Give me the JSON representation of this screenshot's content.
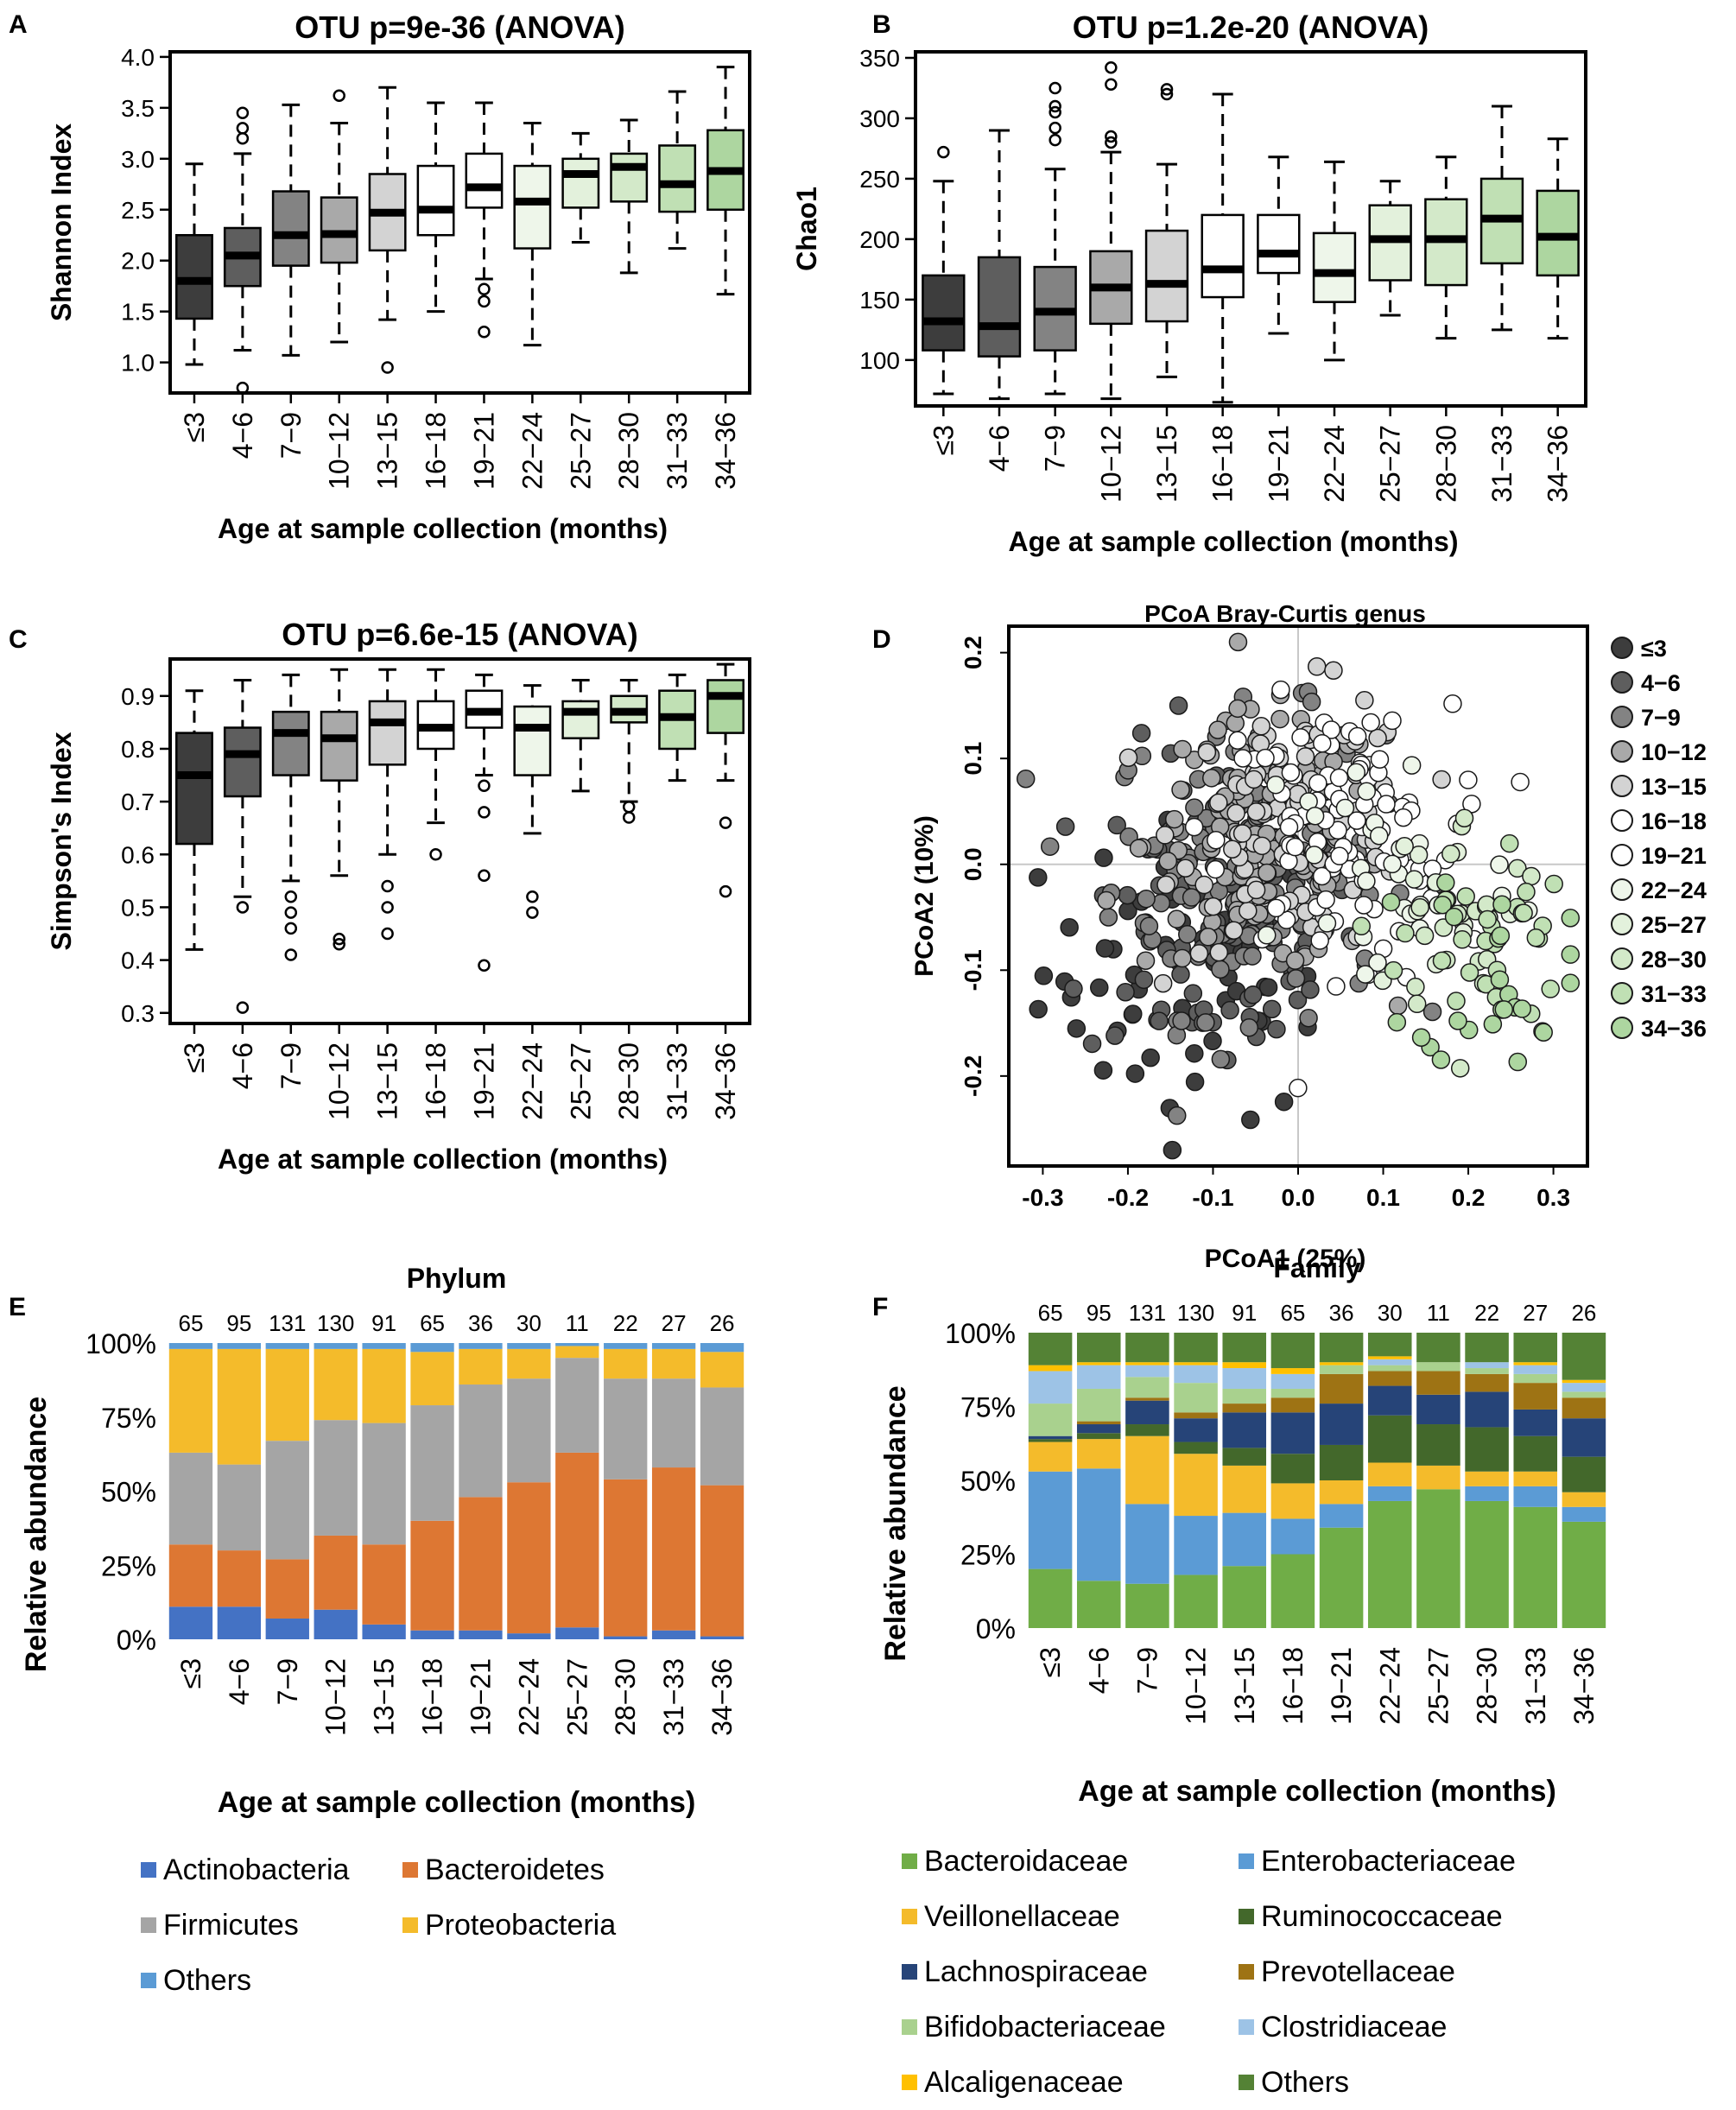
{
  "panel_letters": [
    "A",
    "B",
    "C",
    "D",
    "E",
    "F"
  ],
  "age_groups": [
    "≤3",
    "4−6",
    "7−9",
    "10−12",
    "13−15",
    "16−18",
    "19−21",
    "22−24",
    "25−27",
    "28−30",
    "31−33",
    "34−36"
  ],
  "group_colors": [
    "#3d3d3d",
    "#5e5e5e",
    "#838383",
    "#a9a9a9",
    "#d3d3d3",
    "#ffffff",
    "#ffffff",
    "#eef6ea",
    "#e3f1dc",
    "#d3e9c9",
    "#c0e0b4",
    "#add6a0"
  ],
  "sample_counts": [
    65,
    95,
    131,
    130,
    91,
    65,
    36,
    30,
    11,
    22,
    27,
    26
  ],
  "xlabel": "Age at sample collection (months)",
  "chart_data": [
    {
      "panel": "A",
      "type": "box",
      "title": "OTU p=9e-36 (ANOVA)",
      "ylabel": "Shannon Index",
      "xlabel": "Age at sample collection (months)",
      "ylim": [
        0.7,
        4.05
      ],
      "yticks": [
        "1.0",
        "1.5",
        "2.0",
        "2.5",
        "3.0",
        "3.5",
        "4.0"
      ],
      "boxes": [
        {
          "group": "≤3",
          "min": 0.98,
          "q1": 1.43,
          "median": 1.8,
          "q3": 2.25,
          "max": 2.95,
          "outliers": []
        },
        {
          "group": "4−6",
          "min": 1.12,
          "q1": 1.75,
          "median": 2.05,
          "q3": 2.32,
          "max": 3.05,
          "outliers": [
            3.45,
            3.3,
            3.2,
            0.75
          ]
        },
        {
          "group": "7−9",
          "min": 1.07,
          "q1": 1.95,
          "median": 2.25,
          "q3": 2.68,
          "max": 3.53,
          "outliers": []
        },
        {
          "group": "10−12",
          "min": 1.2,
          "q1": 1.98,
          "median": 2.26,
          "q3": 2.62,
          "max": 3.35,
          "outliers": [
            3.62
          ]
        },
        {
          "group": "13−15",
          "min": 1.42,
          "q1": 2.1,
          "median": 2.47,
          "q3": 2.85,
          "max": 3.7,
          "outliers": [
            0.95
          ]
        },
        {
          "group": "16−18",
          "min": 1.5,
          "q1": 2.25,
          "median": 2.5,
          "q3": 2.93,
          "max": 3.55,
          "outliers": []
        },
        {
          "group": "19−21",
          "min": 1.82,
          "q1": 2.52,
          "median": 2.72,
          "q3": 3.05,
          "max": 3.55,
          "outliers": [
            1.72,
            1.6,
            1.3
          ]
        },
        {
          "group": "22−24",
          "min": 1.17,
          "q1": 2.12,
          "median": 2.58,
          "q3": 2.93,
          "max": 3.35,
          "outliers": []
        },
        {
          "group": "25−27",
          "min": 2.18,
          "q1": 2.52,
          "median": 2.85,
          "q3": 3.0,
          "max": 3.25,
          "outliers": []
        },
        {
          "group": "28−30",
          "min": 1.88,
          "q1": 2.58,
          "median": 2.92,
          "q3": 3.05,
          "max": 3.38,
          "outliers": []
        },
        {
          "group": "31−33",
          "min": 2.12,
          "q1": 2.48,
          "median": 2.75,
          "q3": 3.13,
          "max": 3.66,
          "outliers": []
        },
        {
          "group": "34−36",
          "min": 1.67,
          "q1": 2.5,
          "median": 2.88,
          "q3": 3.28,
          "max": 3.9,
          "outliers": []
        }
      ]
    },
    {
      "panel": "B",
      "type": "box",
      "title": "OTU p=1.2e-20 (ANOVA)",
      "ylabel": "Chao1",
      "xlabel": "Age at sample collection (months)",
      "ylim": [
        62,
        355
      ],
      "yticks": [
        "100",
        "150",
        "200",
        "250",
        "300",
        "350"
      ],
      "boxes": [
        {
          "group": "≤3",
          "min": 72,
          "q1": 108,
          "median": 132,
          "q3": 170,
          "max": 248,
          "outliers": [
            272
          ]
        },
        {
          "group": "4−6",
          "min": 68,
          "q1": 103,
          "median": 128,
          "q3": 185,
          "max": 290,
          "outliers": []
        },
        {
          "group": "7−9",
          "min": 72,
          "q1": 108,
          "median": 140,
          "q3": 177,
          "max": 258,
          "outliers": [
            325,
            310,
            305,
            292,
            282
          ]
        },
        {
          "group": "10−12",
          "min": 68,
          "q1": 130,
          "median": 160,
          "q3": 190,
          "max": 272,
          "outliers": [
            342,
            328,
            285,
            280
          ]
        },
        {
          "group": "13−15",
          "min": 86,
          "q1": 132,
          "median": 163,
          "q3": 207,
          "max": 262,
          "outliers": [
            324,
            320
          ]
        },
        {
          "group": "16−18",
          "min": 65,
          "q1": 152,
          "median": 175,
          "q3": 220,
          "max": 320,
          "outliers": []
        },
        {
          "group": "19−21",
          "min": 122,
          "q1": 172,
          "median": 188,
          "q3": 220,
          "max": 268,
          "outliers": []
        },
        {
          "group": "22−24",
          "min": 100,
          "q1": 148,
          "median": 172,
          "q3": 205,
          "max": 264,
          "outliers": []
        },
        {
          "group": "25−27",
          "min": 137,
          "q1": 166,
          "median": 200,
          "q3": 228,
          "max": 248,
          "outliers": []
        },
        {
          "group": "28−30",
          "min": 118,
          "q1": 162,
          "median": 200,
          "q3": 233,
          "max": 268,
          "outliers": []
        },
        {
          "group": "31−33",
          "min": 125,
          "q1": 180,
          "median": 217,
          "q3": 250,
          "max": 310,
          "outliers": []
        },
        {
          "group": "34−36",
          "min": 118,
          "q1": 170,
          "median": 202,
          "q3": 240,
          "max": 283,
          "outliers": []
        }
      ]
    },
    {
      "panel": "C",
      "type": "box",
      "title": "OTU p=6.6e-15 (ANOVA)",
      "ylabel": "Simpson's Index",
      "xlabel": "Age at sample collection (months)",
      "ylim": [
        0.28,
        0.97
      ],
      "yticks": [
        "0.3",
        "0.4",
        "0.5",
        "0.6",
        "0.7",
        "0.8",
        "0.9"
      ],
      "boxes": [
        {
          "group": "≤3",
          "min": 0.42,
          "q1": 0.62,
          "median": 0.75,
          "q3": 0.83,
          "max": 0.91,
          "outliers": []
        },
        {
          "group": "4−6",
          "min": 0.52,
          "q1": 0.71,
          "median": 0.79,
          "q3": 0.84,
          "max": 0.93,
          "outliers": [
            0.5,
            0.31
          ]
        },
        {
          "group": "7−9",
          "min": 0.55,
          "q1": 0.75,
          "median": 0.83,
          "q3": 0.87,
          "max": 0.94,
          "outliers": [
            0.52,
            0.49,
            0.46,
            0.41
          ]
        },
        {
          "group": "10−12",
          "min": 0.56,
          "q1": 0.74,
          "median": 0.82,
          "q3": 0.87,
          "max": 0.95,
          "outliers": [
            0.44,
            0.43
          ]
        },
        {
          "group": "13−15",
          "min": 0.6,
          "q1": 0.77,
          "median": 0.85,
          "q3": 0.89,
          "max": 0.95,
          "outliers": [
            0.54,
            0.5,
            0.45
          ]
        },
        {
          "group": "16−18",
          "min": 0.66,
          "q1": 0.8,
          "median": 0.84,
          "q3": 0.89,
          "max": 0.95,
          "outliers": [
            0.6
          ]
        },
        {
          "group": "19−21",
          "min": 0.75,
          "q1": 0.84,
          "median": 0.87,
          "q3": 0.91,
          "max": 0.94,
          "outliers": [
            0.73,
            0.68,
            0.56,
            0.39
          ]
        },
        {
          "group": "22−24",
          "min": 0.64,
          "q1": 0.75,
          "median": 0.84,
          "q3": 0.88,
          "max": 0.92,
          "outliers": [
            0.52,
            0.49
          ]
        },
        {
          "group": "25−27",
          "min": 0.72,
          "q1": 0.82,
          "median": 0.87,
          "q3": 0.89,
          "max": 0.93,
          "outliers": []
        },
        {
          "group": "28−30",
          "min": 0.7,
          "q1": 0.85,
          "median": 0.87,
          "q3": 0.9,
          "max": 0.93,
          "outliers": [
            0.69,
            0.67
          ]
        },
        {
          "group": "31−33",
          "min": 0.74,
          "q1": 0.8,
          "median": 0.86,
          "q3": 0.91,
          "max": 0.94,
          "outliers": []
        },
        {
          "group": "34−36",
          "min": 0.74,
          "q1": 0.83,
          "median": 0.9,
          "q3": 0.93,
          "max": 0.96,
          "outliers": [
            0.66,
            0.53
          ]
        }
      ]
    },
    {
      "panel": "D",
      "type": "scatter",
      "title": "PCoA Bray-Curtis genus",
      "xlabel": "PCoA1 (25%)",
      "ylabel": "PCoA2 (10%)",
      "xlim": [
        -0.34,
        0.34
      ],
      "ylim": [
        -0.285,
        0.225
      ],
      "xticks": [
        "-0.3",
        "-0.2",
        "-0.1",
        "0.0",
        "0.1",
        "0.2",
        "0.3"
      ],
      "yticks": [
        "-0.2",
        "-0.1",
        "0.0",
        "0.1",
        "0.2"
      ],
      "legend_position": "right",
      "groups": [
        {
          "group": "≤3",
          "n": 65,
          "mean": [
            -0.12,
            -0.1
          ],
          "sd": [
            0.09,
            0.07
          ]
        },
        {
          "group": "4−6",
          "n": 95,
          "mean": [
            -0.09,
            -0.05
          ],
          "sd": [
            0.08,
            0.08
          ]
        },
        {
          "group": "7−9",
          "n": 131,
          "mean": [
            -0.06,
            0.0
          ],
          "sd": [
            0.08,
            0.07
          ]
        },
        {
          "group": "10−12",
          "n": 130,
          "mean": [
            -0.04,
            0.02
          ],
          "sd": [
            0.07,
            0.06
          ]
        },
        {
          "group": "13−15",
          "n": 91,
          "mean": [
            0.0,
            0.04
          ],
          "sd": [
            0.07,
            0.06
          ]
        },
        {
          "group": "16−18",
          "n": 65,
          "mean": [
            0.04,
            0.03
          ],
          "sd": [
            0.07,
            0.06
          ]
        },
        {
          "group": "19−21",
          "n": 36,
          "mean": [
            0.07,
            0.02
          ],
          "sd": [
            0.08,
            0.07
          ]
        },
        {
          "group": "22−24",
          "n": 30,
          "mean": [
            0.1,
            0.0
          ],
          "sd": [
            0.08,
            0.07
          ]
        },
        {
          "group": "25−27",
          "n": 11,
          "mean": [
            0.17,
            -0.03
          ],
          "sd": [
            0.05,
            0.05
          ]
        },
        {
          "group": "28−30",
          "n": 22,
          "mean": [
            0.2,
            -0.05
          ],
          "sd": [
            0.05,
            0.05
          ]
        },
        {
          "group": "31−33",
          "n": 27,
          "mean": [
            0.22,
            -0.07
          ],
          "sd": [
            0.05,
            0.05
          ]
        },
        {
          "group": "34−36",
          "n": 26,
          "mean": [
            0.24,
            -0.09
          ],
          "sd": [
            0.05,
            0.05
          ]
        }
      ]
    },
    {
      "panel": "E",
      "type": "stacked_bar",
      "title": "Phylum",
      "ylabel": "Relative abundance",
      "xlabel": "Age at sample collection (months)",
      "yticks": [
        "0%",
        "25%",
        "50%",
        "75%",
        "100%"
      ],
      "series": [
        {
          "name": "Actinobacteria",
          "color": "#4472c4",
          "values": [
            11,
            11,
            7,
            10,
            5,
            3,
            3,
            2,
            4,
            1,
            3,
            1
          ]
        },
        {
          "name": "Bacteroidetes",
          "color": "#dd7733",
          "values": [
            21,
            19,
            20,
            25,
            27,
            37,
            45,
            51,
            59,
            53,
            55,
            51
          ]
        },
        {
          "name": "Firmicutes",
          "color": "#a5a5a5",
          "values": [
            31,
            29,
            40,
            39,
            41,
            39,
            38,
            35,
            32,
            34,
            30,
            33
          ]
        },
        {
          "name": "Proteobacteria",
          "color": "#f4bb2b",
          "values": [
            35,
            39,
            31,
            24,
            25,
            18,
            12,
            10,
            4,
            10,
            10,
            12
          ]
        },
        {
          "name": "Others",
          "color": "#5b9bd5",
          "values": [
            2,
            2,
            2,
            2,
            2,
            3,
            2,
            2,
            1,
            2,
            2,
            3
          ]
        }
      ]
    },
    {
      "panel": "F",
      "type": "stacked_bar",
      "title": "Family",
      "ylabel": "Relative abundance",
      "xlabel": "Age at sample collection (months)",
      "yticks": [
        "0%",
        "25%",
        "50%",
        "75%",
        "100%"
      ],
      "series": [
        {
          "name": "Bacteroidaceae",
          "color": "#70ad47",
          "values": [
            20,
            16,
            15,
            18,
            21,
            25,
            34,
            43,
            47,
            43,
            41,
            36
          ]
        },
        {
          "name": "Enterobacteriaceae",
          "color": "#5b9bd5",
          "values": [
            33,
            38,
            27,
            20,
            18,
            12,
            8,
            5,
            0,
            5,
            7,
            5
          ]
        },
        {
          "name": "Veillonellaceae",
          "color": "#f4bb2b",
          "values": [
            10,
            10,
            23,
            21,
            16,
            12,
            8,
            8,
            8,
            5,
            5,
            5
          ]
        },
        {
          "name": "Ruminococcaceae",
          "color": "#43682b",
          "values": [
            1,
            2,
            4,
            4,
            6,
            10,
            12,
            16,
            14,
            15,
            12,
            12
          ]
        },
        {
          "name": "Lachnospiraceae",
          "color": "#264478",
          "values": [
            1,
            3,
            8,
            8,
            12,
            14,
            14,
            10,
            10,
            12,
            9,
            13
          ]
        },
        {
          "name": "Prevotellaceae",
          "color": "#9e7314",
          "values": [
            0,
            1,
            1,
            2,
            3,
            5,
            10,
            5,
            8,
            6,
            9,
            7
          ]
        },
        {
          "name": "Bifidobacteriaceae",
          "color": "#a9d18e",
          "values": [
            11,
            11,
            7,
            10,
            5,
            3,
            3,
            2,
            3,
            2,
            3,
            2
          ]
        },
        {
          "name": "Clostridiaceae",
          "color": "#9dc3e6",
          "values": [
            11,
            8,
            4,
            6,
            7,
            5,
            0,
            2,
            0,
            2,
            3,
            3
          ]
        },
        {
          "name": "Alcaligenaceae",
          "color": "#ffc000",
          "values": [
            2,
            1,
            1,
            1,
            2,
            2,
            1,
            1,
            0,
            0,
            1,
            1
          ]
        },
        {
          "name": "Others",
          "color": "#548235",
          "values": [
            11,
            10,
            10,
            10,
            10,
            12,
            10,
            8,
            10,
            10,
            10,
            16
          ]
        }
      ]
    }
  ]
}
